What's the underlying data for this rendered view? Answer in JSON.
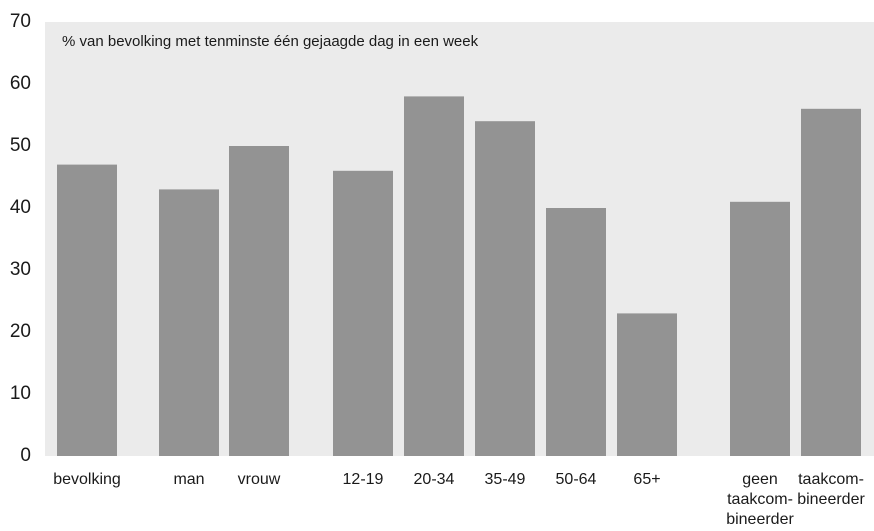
{
  "chart_data": {
    "type": "bar",
    "annotation": "% van bevolking met tenminste één gejaagde dag in een week",
    "categories": [
      "bevolking",
      "man",
      "vrouw",
      "12-19",
      "20-34",
      "35-49",
      "50-64",
      "65+",
      "geen\ntaakcom-\nbineerder",
      "taakcom-\nbineerder"
    ],
    "values": [
      47,
      43,
      50,
      46,
      58,
      54,
      40,
      23,
      41,
      56
    ],
    "color": "#939393",
    "ylim": [
      0,
      70
    ],
    "yticks": [
      0,
      10,
      20,
      30,
      40,
      50,
      60,
      70
    ],
    "grid": false
  }
}
